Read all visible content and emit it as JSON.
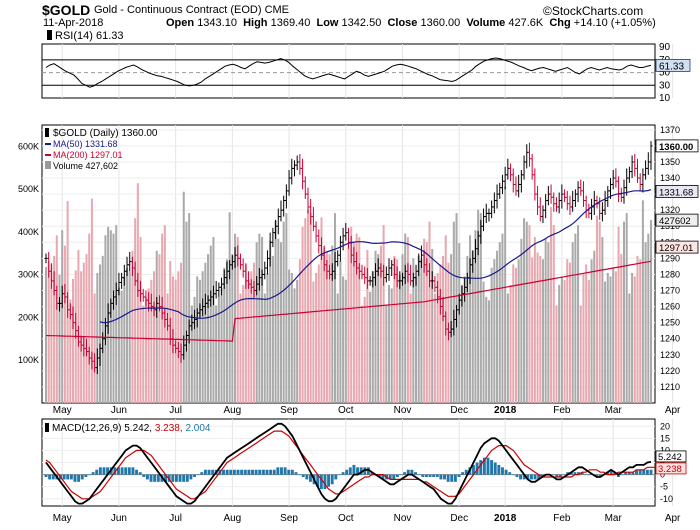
{
  "header": {
    "symbol": "$GOLD",
    "name": "Gold - Continuous Contract (EOD)",
    "exchange": "CME",
    "date": "11-Apr-2018",
    "open_label": "Open",
    "open": "1343.10",
    "high_label": "High",
    "high": "1369.40",
    "low_label": "Low",
    "low": "1342.50",
    "close_label": "Close",
    "close": "1360.00",
    "volume_label": "Volume",
    "volume": "427.6K",
    "chg_label": "Chg",
    "chg": "+14.10 (+1.05%)",
    "brand": "©StockCharts.com"
  },
  "colors": {
    "up": "#000000",
    "down": "#cc0033",
    "ma50": "#1a1a8c",
    "ma200": "#cc0033",
    "vol_up": "#aaaaaa",
    "vol_down": "#e8a8b0",
    "macd": "#000000",
    "signal": "#cc0000",
    "hist": "#2277aa",
    "rsi": "#000000"
  },
  "chart_data": [
    {
      "type": "line",
      "panel": "rsi",
      "legend": "RSI(14) 61.33",
      "last_label": "61.33",
      "ylim": [
        10,
        95
      ],
      "yticks": [
        90,
        70,
        50,
        30,
        10
      ],
      "reference_lines": [
        70,
        50,
        30
      ],
      "values": [
        58,
        62,
        64,
        60,
        56,
        52,
        49,
        46,
        40,
        33,
        30,
        27,
        29,
        33,
        36,
        40,
        44,
        48,
        52,
        55,
        58,
        60,
        62,
        59,
        55,
        52,
        49,
        47,
        45,
        44,
        42,
        40,
        38,
        36,
        33,
        30,
        29,
        30,
        32,
        35,
        40,
        44,
        48,
        52,
        56,
        60,
        62,
        63,
        61,
        58,
        56,
        60,
        64,
        67,
        66,
        65,
        66,
        68,
        70,
        72,
        70,
        66,
        60,
        55,
        50,
        45,
        42,
        40,
        42,
        44,
        46,
        48,
        46,
        44,
        42,
        40,
        44,
        48,
        52,
        50,
        46,
        44,
        46,
        48,
        50,
        52,
        56,
        60,
        62,
        63,
        62,
        60,
        58,
        56,
        53,
        50,
        47,
        45,
        42,
        39,
        38,
        37,
        36,
        38,
        42,
        46,
        50,
        54,
        60,
        64,
        68,
        70,
        72,
        73,
        72,
        70,
        68,
        66,
        63,
        60,
        58,
        55,
        53,
        55,
        57,
        58,
        56,
        54,
        52,
        54,
        56,
        58,
        54,
        50,
        48,
        52,
        56,
        58,
        56,
        54,
        56,
        58,
        56,
        55,
        54,
        56,
        60,
        62,
        60,
        58,
        58,
        60,
        61.33
      ]
    },
    {
      "type": "line",
      "panel": "price",
      "legend": "$GOLD (Daily) 1360.00",
      "ylim": [
        1200,
        1373
      ],
      "yticks": [
        1370,
        1360,
        1350,
        1340,
        1330,
        1320,
        1310,
        1300,
        1290,
        1280,
        1270,
        1260,
        1250,
        1240,
        1230,
        1220,
        1210
      ],
      "last_close_label": "1360.00",
      "ma50_label": "1331.68",
      "ma200_label": "1297.01",
      "x_labels": [
        {
          "idx": 6,
          "label": "May",
          "bold": false
        },
        {
          "idx": 27,
          "label": "Jun",
          "bold": false
        },
        {
          "idx": 48,
          "label": "Jul",
          "bold": false
        },
        {
          "idx": 69,
          "label": "Aug",
          "bold": false
        },
        {
          "idx": 90,
          "label": "Sep",
          "bold": false
        },
        {
          "idx": 111,
          "label": "Oct",
          "bold": false
        },
        {
          "idx": 132,
          "label": "Nov",
          "bold": false
        },
        {
          "idx": 153,
          "label": "Dec",
          "bold": false
        },
        {
          "idx": 170,
          "label": "2018",
          "bold": true
        },
        {
          "idx": 191,
          "label": "Feb",
          "bold": false
        },
        {
          "idx": 210,
          "label": "Mar",
          "bold": false
        },
        {
          "idx": 232,
          "label": "Apr",
          "bold": false
        }
      ],
      "close": [
        1290,
        1282,
        1276,
        1270,
        1262,
        1262,
        1268,
        1266,
        1258,
        1255,
        1250,
        1245,
        1238,
        1236,
        1234,
        1232,
        1228,
        1226,
        1222,
        1228,
        1234,
        1240,
        1248,
        1256,
        1262,
        1266,
        1270,
        1275,
        1278,
        1282,
        1286,
        1288,
        1284,
        1276,
        1270,
        1268,
        1266,
        1264,
        1262,
        1260,
        1258,
        1262,
        1260,
        1256,
        1252,
        1248,
        1240,
        1236,
        1234,
        1232,
        1230,
        1236,
        1242,
        1248,
        1250,
        1252,
        1256,
        1258,
        1260,
        1262,
        1264,
        1266,
        1268,
        1270,
        1272,
        1274,
        1278,
        1282,
        1286,
        1288,
        1292,
        1290,
        1286,
        1282,
        1276,
        1274,
        1272,
        1270,
        1274,
        1278,
        1280,
        1284,
        1290,
        1300,
        1306,
        1310,
        1316,
        1320,
        1326,
        1332,
        1340,
        1346,
        1348,
        1350,
        1346,
        1338,
        1330,
        1322,
        1316,
        1310,
        1304,
        1298,
        1292,
        1286,
        1282,
        1280,
        1282,
        1288,
        1292,
        1300,
        1304,
        1306,
        1300,
        1292,
        1288,
        1284,
        1282,
        1280,
        1278,
        1276,
        1276,
        1278,
        1282,
        1284,
        1282,
        1278,
        1280,
        1284,
        1286,
        1280,
        1276,
        1276,
        1278,
        1282,
        1280,
        1276,
        1278,
        1282,
        1288,
        1292,
        1286,
        1282,
        1276,
        1276,
        1272,
        1266,
        1260,
        1254,
        1246,
        1244,
        1246,
        1252,
        1258,
        1264,
        1268,
        1272,
        1278,
        1286,
        1290,
        1296,
        1304,
        1310,
        1316,
        1318,
        1318,
        1322,
        1326,
        1330,
        1334,
        1338,
        1342,
        1346,
        1342,
        1336,
        1332,
        1336,
        1342,
        1350,
        1356,
        1352,
        1342,
        1330,
        1322,
        1316,
        1320,
        1326,
        1330,
        1328,
        1324,
        1322,
        1326,
        1330,
        1328,
        1324,
        1322,
        1326,
        1330,
        1334,
        1332,
        1326,
        1320,
        1318,
        1322,
        1326,
        1324,
        1318,
        1320,
        1326,
        1332,
        1336,
        1340,
        1338,
        1330,
        1328,
        1334,
        1340,
        1344,
        1350,
        1346,
        1340,
        1336,
        1342,
        1346,
        1350,
        1360
      ]
    },
    {
      "type": "bar",
      "panel": "volume",
      "legend": "Volume 427,602",
      "last_label": "427602",
      "ylim": [
        0,
        650000
      ],
      "yticks": [
        600000,
        500000,
        400000,
        300000,
        200000,
        100000
      ],
      "ytick_labels": [
        "600K",
        "500K",
        "400K",
        "300K",
        "200K",
        "100K"
      ]
    },
    {
      "type": "line",
      "panel": "macd",
      "legend_prefix": "MACD(12,26,9)",
      "legend_macd": "5.242,",
      "legend_signal": "3.238,",
      "legend_hist": "2.004",
      "macd_label": "5.242",
      "signal_label": "3.238",
      "ylim": [
        -13,
        23
      ],
      "yticks": [
        20,
        15,
        10,
        5,
        0,
        -5,
        -10
      ],
      "macd": [
        5,
        3,
        1,
        -1,
        -3,
        -5,
        -7,
        -9,
        -11,
        -12,
        -12,
        -11,
        -10,
        -8,
        -6,
        -4,
        -2,
        0,
        2,
        4,
        6,
        8,
        10,
        11,
        12,
        12,
        11,
        9,
        7,
        5,
        3,
        1,
        -1,
        -3,
        -5,
        -7,
        -9,
        -10,
        -11,
        -12,
        -12,
        -11,
        -9,
        -7,
        -5,
        -3,
        -1,
        1,
        3,
        5,
        7,
        8,
        9,
        10,
        11,
        12,
        13,
        14,
        15,
        16,
        17,
        18,
        19,
        20,
        21,
        21,
        20,
        18,
        16,
        13,
        10,
        7,
        4,
        1,
        -2,
        -5,
        -8,
        -10,
        -11,
        -11,
        -10,
        -8,
        -6,
        -4,
        -2,
        0,
        0,
        1,
        2,
        2,
        1,
        0,
        -1,
        -2,
        -3,
        -4,
        -4,
        -3,
        -2,
        -1,
        0,
        0,
        -1,
        -2,
        -3,
        -4,
        -5,
        -6,
        -8,
        -10,
        -11,
        -12,
        -12,
        -10,
        -7,
        -4,
        -1,
        2,
        5,
        8,
        11,
        13,
        14,
        15,
        15,
        14,
        12,
        10,
        8,
        6,
        4,
        2,
        0,
        -2,
        -3,
        -3,
        -2,
        -1,
        0,
        0,
        -1,
        -2,
        -2,
        -1,
        0,
        1,
        2,
        3,
        3,
        2,
        1,
        0,
        -1,
        -1,
        0,
        1,
        2,
        1,
        0,
        1,
        2,
        3,
        3,
        4,
        4,
        4,
        5,
        5.242
      ],
      "signal": [
        6,
        5,
        3,
        1,
        -1,
        -3,
        -5,
        -7,
        -8,
        -9,
        -10,
        -10,
        -10,
        -9,
        -8,
        -7,
        -5,
        -3,
        -1,
        1,
        3,
        5,
        7,
        8,
        9,
        10,
        10,
        10,
        9,
        8,
        6,
        4,
        2,
        0,
        -2,
        -4,
        -6,
        -7,
        -8,
        -9,
        -10,
        -10,
        -9,
        -8,
        -7,
        -5,
        -3,
        -1,
        1,
        3,
        5,
        6,
        7,
        8,
        9,
        10,
        11,
        12,
        13,
        14,
        15,
        16,
        17,
        18,
        18,
        18,
        17,
        16,
        14,
        12,
        10,
        8,
        6,
        4,
        2,
        0,
        -2,
        -4,
        -6,
        -7,
        -8,
        -8,
        -7,
        -6,
        -5,
        -4,
        -3,
        -2,
        -1,
        -1,
        0,
        0,
        0,
        0,
        -1,
        -2,
        -2,
        -2,
        -2,
        -2,
        -2,
        -2,
        -2,
        -2,
        -3,
        -3,
        -4,
        -5,
        -6,
        -7,
        -8,
        -9,
        -9,
        -9,
        -8,
        -6,
        -4,
        -2,
        0,
        2,
        4,
        6,
        8,
        10,
        11,
        12,
        12,
        12,
        11,
        10,
        8,
        6,
        4,
        3,
        2,
        1,
        0,
        -1,
        -1,
        -1,
        -1,
        -1,
        -1,
        -1,
        -1,
        -1,
        0,
        0,
        1,
        1,
        2,
        2,
        2,
        1,
        1,
        0,
        0,
        0,
        1,
        1,
        1,
        1,
        1,
        2,
        2,
        2,
        3,
        3,
        3,
        3.238
      ],
      "hist": [
        -1,
        -2,
        -2,
        -2,
        -2,
        -2,
        -2,
        -2,
        -3,
        -3,
        -2,
        -1,
        0,
        1,
        2,
        3,
        3,
        3,
        3,
        3,
        3,
        3,
        3,
        3,
        3,
        2,
        1,
        -1,
        -2,
        -3,
        -3,
        -3,
        -3,
        -3,
        -3,
        -3,
        -3,
        -3,
        -3,
        -3,
        -2,
        -1,
        0,
        1,
        2,
        2,
        2,
        2,
        2,
        2,
        2,
        2,
        2,
        2,
        2,
        2,
        2,
        2,
        2,
        2,
        2,
        2,
        2,
        2,
        3,
        3,
        3,
        2,
        2,
        1,
        0,
        -1,
        -2,
        -3,
        -4,
        -5,
        -6,
        -6,
        -5,
        -4,
        -2,
        0,
        1,
        2,
        3,
        4,
        3,
        3,
        3,
        3,
        1,
        0,
        -1,
        -2,
        -2,
        -2,
        -2,
        -1,
        0,
        1,
        2,
        2,
        1,
        0,
        -1,
        -1,
        -1,
        -1,
        -1,
        -2,
        -2,
        -3,
        -3,
        -3,
        -1,
        1,
        2,
        3,
        4,
        5,
        6,
        7,
        7,
        6,
        5,
        4,
        3,
        2,
        1,
        0,
        -1,
        -2,
        -2,
        -2,
        -2,
        -2,
        -2,
        -1,
        0,
        0,
        0,
        -1,
        -1,
        0,
        1,
        1,
        1,
        1,
        1,
        0,
        0,
        0,
        -1,
        -1,
        0,
        1,
        2,
        1,
        -1,
        0,
        1,
        1,
        1,
        2,
        2,
        2,
        2,
        2.004
      ]
    }
  ]
}
